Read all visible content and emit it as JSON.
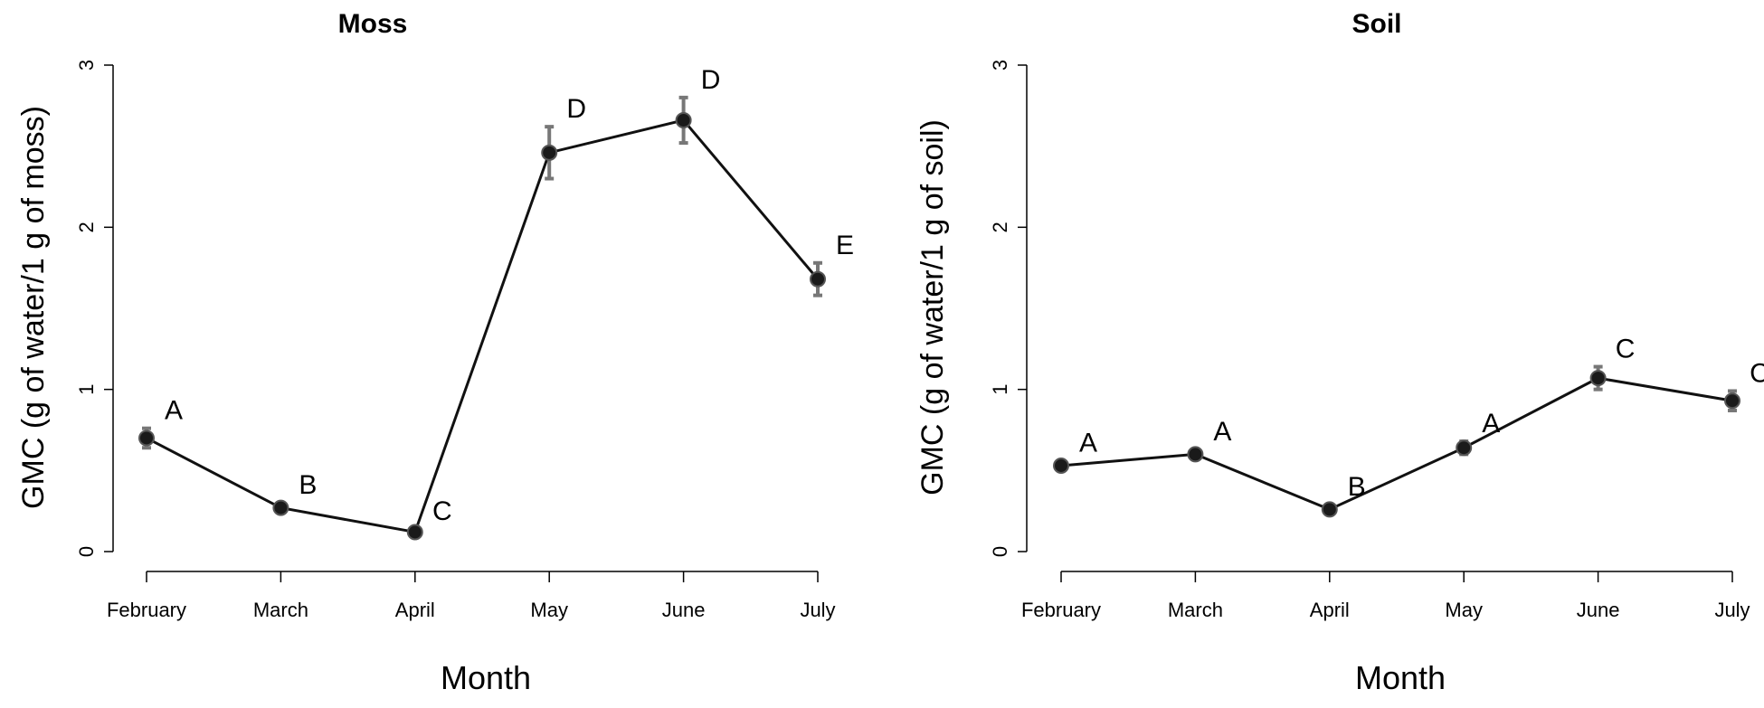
{
  "chart_data": [
    {
      "type": "line",
      "title": "Moss",
      "xlabel": "Month",
      "ylabel": "GMC (g of water/1 g of moss)",
      "ylim": [
        0,
        3
      ],
      "yticks": [
        "0",
        "1",
        "2",
        "3"
      ],
      "categories": [
        "February",
        "March",
        "April",
        "May",
        "June",
        "July"
      ],
      "values": [
        0.7,
        0.27,
        0.12,
        2.46,
        2.66,
        1.68
      ],
      "errors": [
        0.06,
        0.03,
        0.02,
        0.16,
        0.14,
        0.1
      ],
      "letters": [
        "A",
        "B",
        "C",
        "D",
        "D",
        "E"
      ]
    },
    {
      "type": "line",
      "title": "Soil",
      "xlabel": "Month",
      "ylabel": "GMC (g of water/1 g of soil)",
      "ylim": [
        0,
        3
      ],
      "yticks": [
        "0",
        "1",
        "2",
        "3"
      ],
      "categories": [
        "February",
        "March",
        "April",
        "May",
        "June",
        "July"
      ],
      "values": [
        0.53,
        0.6,
        0.26,
        0.64,
        1.07,
        0.93
      ],
      "errors": [
        0.03,
        0.03,
        0.03,
        0.04,
        0.07,
        0.06
      ],
      "letters": [
        "A",
        "A",
        "B",
        "A",
        "C",
        "C"
      ]
    }
  ]
}
